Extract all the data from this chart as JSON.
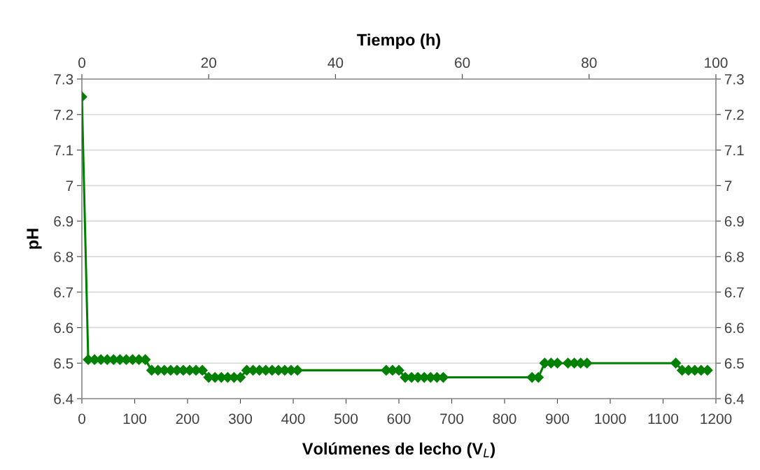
{
  "chart_data": {
    "type": "line",
    "xlabel": "Volúmenes de lecho (V$_{L}$)",
    "ylabel": "pH",
    "x2label": "Tiempo (h)",
    "x": [
      0,
      12,
      24,
      36,
      48,
      60,
      72,
      84,
      96,
      108,
      120,
      132,
      144,
      156,
      168,
      180,
      192,
      204,
      216,
      228,
      240,
      252,
      264,
      276,
      288,
      300,
      312,
      324,
      336,
      348,
      360,
      372,
      384,
      396,
      408,
      576,
      588,
      600,
      612,
      624,
      636,
      648,
      660,
      672,
      684,
      852,
      864,
      876,
      888,
      900,
      920,
      932,
      944,
      956,
      1124,
      1136,
      1148,
      1160,
      1172,
      1184
    ],
    "series": [
      {
        "color": "#008000",
        "values": [
          7.25,
          6.51,
          6.51,
          6.51,
          6.51,
          6.51,
          6.51,
          6.51,
          6.51,
          6.51,
          6.51,
          6.48,
          6.48,
          6.48,
          6.48,
          6.48,
          6.48,
          6.48,
          6.48,
          6.48,
          6.46,
          6.46,
          6.46,
          6.46,
          6.46,
          6.46,
          6.48,
          6.48,
          6.48,
          6.48,
          6.48,
          6.48,
          6.48,
          6.48,
          6.48,
          6.48,
          6.48,
          6.48,
          6.46,
          6.46,
          6.46,
          6.46,
          6.46,
          6.46,
          6.46,
          6.46,
          6.46,
          6.5,
          6.5,
          6.5,
          6.5,
          6.5,
          6.5,
          6.5,
          6.5,
          6.48,
          6.48,
          6.48,
          6.48,
          6.48
        ]
      }
    ],
    "xlim": [
      0,
      1200
    ],
    "xticks": [
      0,
      100,
      200,
      300,
      400,
      500,
      600,
      700,
      800,
      900,
      1000,
      1100,
      1200
    ],
    "x2lim": [
      0,
      100
    ],
    "x2ticks": [
      0,
      20,
      40,
      60,
      80,
      100
    ],
    "ylim": [
      6.4,
      7.3
    ],
    "yticks": [
      6.4,
      6.5,
      6.6,
      6.7,
      6.8,
      6.9,
      7,
      7.1,
      7.2,
      7.3
    ],
    "y2lim": [
      6.4,
      7.3
    ],
    "y2ticks": [
      6.4,
      6.5,
      6.6,
      6.7,
      6.8,
      6.9,
      7,
      7.1,
      7.2,
      7.3
    ],
    "grid": "y",
    "marker": "diamond",
    "line_style": "solid",
    "legend": false
  }
}
